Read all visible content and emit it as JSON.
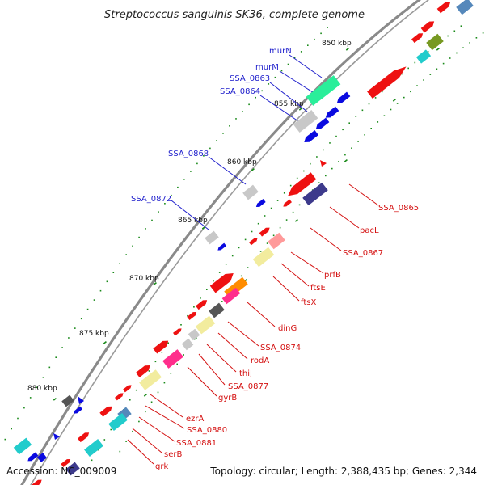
{
  "title": "Streptococcus sanguinis SK36, complete genome",
  "footer": {
    "accession": "Accession: NC_009009",
    "summary": "Topology: circular; Length: 2,388,435 bp; Genes: 2,344"
  },
  "scale_labels": [
    "850 kbp",
    "855 kbp",
    "860 kbp",
    "865 kbp",
    "870 kbp",
    "875 kbp",
    "880 kbp"
  ],
  "labels_upper": [
    "murN",
    "murM",
    "SSA_0863",
    "SSA_0864",
    "SSA_0868",
    "SSA_0872"
  ],
  "labels_lower": [
    "SSA_0865",
    "pacL",
    "SSA_0867",
    "prfB",
    "ftsE",
    "ftsX",
    "dinG",
    "SSA_0874",
    "rodA",
    "thiJ",
    "SSA_0877",
    "gyrB",
    "ezrA",
    "SSA_0880",
    "SSA_0881",
    "serB",
    "grk"
  ],
  "colors": {
    "backbone": "#8a8a8a",
    "forward_gene": "#ee1111",
    "label_upper": "#1f1fcc",
    "label_lower": "#d41010",
    "tick": "#1a8a1a",
    "feature_blue": "#0a0ae0",
    "feature_indigo": "#3d3a8c",
    "feature_green": "#2aee9a",
    "feature_cyan": "#22cccc",
    "feature_pink": "#ff2e8c",
    "feature_orange": "#ff8c00",
    "feature_yellow": "#f2ec9e",
    "feature_grey": "#c8c8c8",
    "feature_dark": "#555555",
    "feature_olive": "#779922",
    "feature_steel": "#5588bb"
  }
}
